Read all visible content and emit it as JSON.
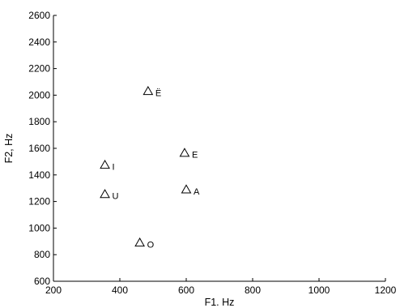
{
  "chart_data": {
    "type": "scatter",
    "title": "",
    "xlabel": "F1. Hz",
    "ylabel": "F2, Hz",
    "xlim": [
      200,
      1200
    ],
    "ylim": [
      600,
      2600
    ],
    "xticks": [
      200,
      400,
      600,
      800,
      1000,
      1200
    ],
    "yticks": [
      600,
      800,
      1000,
      1200,
      1400,
      1600,
      1800,
      2000,
      2200,
      2400,
      2600
    ],
    "grid": false,
    "marker": "triangle",
    "points": [
      {
        "label": "Ë",
        "x": 485,
        "y": 2030
      },
      {
        "label": "E",
        "x": 595,
        "y": 1565
      },
      {
        "label": "I",
        "x": 355,
        "y": 1475
      },
      {
        "label": "A",
        "x": 600,
        "y": 1290
      },
      {
        "label": "U",
        "x": 355,
        "y": 1255
      },
      {
        "label": "O",
        "x": 460,
        "y": 890
      }
    ]
  }
}
